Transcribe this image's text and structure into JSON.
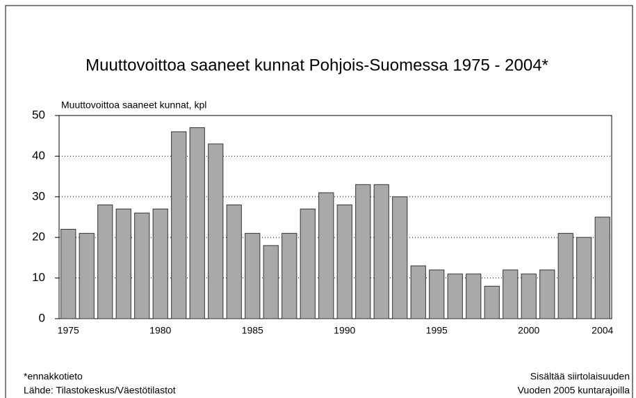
{
  "chart_data": {
    "type": "bar",
    "title": "Muuttovoittoa saaneet kunnat Pohjois-Suomessa 1975 - 2004*",
    "y_label": "Muuttovoittoa saaneet kunnat, kpl",
    "categories": [
      "1975",
      null,
      null,
      null,
      null,
      "1980",
      null,
      null,
      null,
      null,
      "1985",
      null,
      null,
      null,
      null,
      "1990",
      null,
      null,
      null,
      null,
      "1995",
      null,
      null,
      null,
      null,
      "2000",
      null,
      null,
      null,
      "2004"
    ],
    "values": [
      22,
      21,
      28,
      27,
      26,
      27,
      46,
      47,
      43,
      28,
      21,
      18,
      21,
      27,
      31,
      28,
      33,
      33,
      30,
      13,
      12,
      11,
      11,
      8,
      12,
      11,
      12,
      21,
      20,
      25
    ],
    "color": "#a9a9a9",
    "ylim": [
      0,
      50
    ],
    "yticks": [
      0,
      10,
      20,
      30,
      40,
      50
    ],
    "grid": true,
    "notes_left": [
      "*ennakkotieto",
      "Lähde: Tilastokeskus/Väestötilastot"
    ],
    "notes_right": [
      "Sisältää siirtolaisuuden",
      "Vuoden 2005 kuntarajoilla"
    ]
  }
}
